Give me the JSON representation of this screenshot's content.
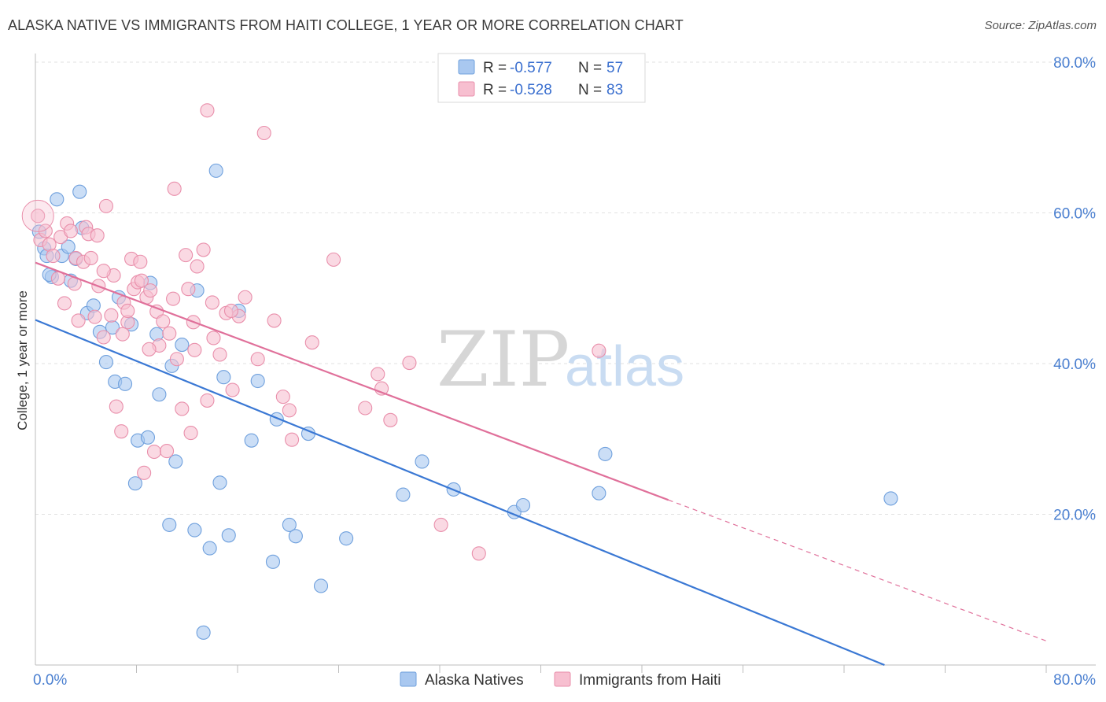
{
  "header": {
    "title": "ALASKA NATIVE VS IMMIGRANTS FROM HAITI COLLEGE, 1 YEAR OR MORE CORRELATION CHART",
    "source": "Source: ZipAtlas.com"
  },
  "watermark": {
    "zip": "ZIP",
    "atlas": "atlas"
  },
  "legend": {
    "r_label": "R = ",
    "n_label": "N = ",
    "items": [
      {
        "r": "-0.577",
        "n": "57",
        "color": "#a9c8f0",
        "stroke": "#6fa0dd"
      },
      {
        "r": "-0.528",
        "n": "83",
        "color": "#f7bfd0",
        "stroke": "#e98fab"
      }
    ]
  },
  "bottom_legend": [
    {
      "label": "Alaska Natives",
      "color": "#a9c8f0",
      "stroke": "#6fa0dd"
    },
    {
      "label": "Immigrants from Haiti",
      "color": "#f7bfd0",
      "stroke": "#e98fab"
    }
  ],
  "chart_data": {
    "type": "scatter",
    "xlabel": "",
    "ylabel": "College, 1 year or more",
    "xlim": [
      0,
      80
    ],
    "ylim": [
      0,
      80
    ],
    "x_tick_labels": [
      {
        "value": 0,
        "label": "0.0%"
      },
      {
        "value": 80,
        "label": "80.0%"
      }
    ],
    "y_ticks": [
      {
        "value": 20,
        "label": "20.0%"
      },
      {
        "value": 40,
        "label": "40.0%"
      },
      {
        "value": 60,
        "label": "60.0%"
      },
      {
        "value": 80,
        "label": "80.0%"
      }
    ],
    "grid": true,
    "legend_position": "top-center",
    "series": [
      {
        "name": "Alaska Natives",
        "color": "#a9c8f0",
        "stroke": "#6fa0dd",
        "line_color": "#3a78d4",
        "trend": {
          "x0": 0,
          "y0": 45.8,
          "x1": 67.2,
          "y1": 0
        },
        "points": [
          [
            0.3,
            57.5
          ],
          [
            0.7,
            55.3
          ],
          [
            0.9,
            54.3
          ],
          [
            1.3,
            51.5
          ],
          [
            1.7,
            61.8
          ],
          [
            2.1,
            54.3
          ],
          [
            2.6,
            55.5
          ],
          [
            2.8,
            51.0
          ],
          [
            3.2,
            53.9
          ],
          [
            3.5,
            62.8
          ],
          [
            3.7,
            58.0
          ],
          [
            4.1,
            46.7
          ],
          [
            4.6,
            47.7
          ],
          [
            5.1,
            44.2
          ],
          [
            5.6,
            40.2
          ],
          [
            6.1,
            44.8
          ],
          [
            6.3,
            37.6
          ],
          [
            6.6,
            48.8
          ],
          [
            7.1,
            37.3
          ],
          [
            7.6,
            45.2
          ],
          [
            7.9,
            24.1
          ],
          [
            8.1,
            29.8
          ],
          [
            8.9,
            30.2
          ],
          [
            9.1,
            50.7
          ],
          [
            9.6,
            43.9
          ],
          [
            9.8,
            35.9
          ],
          [
            10.6,
            18.6
          ],
          [
            10.8,
            39.7
          ],
          [
            11.1,
            27.0
          ],
          [
            12.8,
            49.7
          ],
          [
            12.6,
            17.9
          ],
          [
            13.3,
            4.3
          ],
          [
            13.8,
            15.5
          ],
          [
            14.3,
            65.6
          ],
          [
            14.6,
            24.2
          ],
          [
            14.9,
            38.2
          ],
          [
            15.3,
            17.2
          ],
          [
            16.1,
            47.0
          ],
          [
            17.1,
            29.8
          ],
          [
            17.6,
            37.7
          ],
          [
            18.8,
            13.7
          ],
          [
            19.1,
            32.6
          ],
          [
            20.1,
            18.6
          ],
          [
            20.6,
            17.1
          ],
          [
            21.6,
            30.7
          ],
          [
            22.6,
            10.5
          ],
          [
            24.6,
            16.8
          ],
          [
            29.1,
            22.6
          ],
          [
            30.6,
            27.0
          ],
          [
            33.1,
            23.3
          ],
          [
            37.9,
            20.3
          ],
          [
            38.6,
            21.2
          ],
          [
            44.6,
            22.8
          ],
          [
            45.1,
            28.0
          ],
          [
            67.7,
            22.1
          ],
          [
            1.1,
            51.8
          ],
          [
            11.6,
            42.5
          ]
        ]
      },
      {
        "name": "Immigrants from Haiti",
        "color": "#f7bfd0",
        "stroke": "#e98fab",
        "line_color": "#e0709a",
        "trend": {
          "x0": 0,
          "y0": 53.4,
          "x1": 50.1,
          "y1": 21.9
        },
        "trend_dashed": {
          "x0": 50.1,
          "y0": 21.9,
          "x1": 80,
          "y1": 3.2
        },
        "points": [
          [
            0.2,
            59.6
          ],
          [
            0.4,
            56.4
          ],
          [
            0.8,
            57.6
          ],
          [
            1.1,
            55.8
          ],
          [
            1.4,
            54.3
          ],
          [
            1.8,
            51.3
          ],
          [
            2.0,
            56.8
          ],
          [
            2.3,
            48.0
          ],
          [
            2.5,
            58.6
          ],
          [
            2.8,
            57.6
          ],
          [
            3.2,
            54.0
          ],
          [
            3.4,
            45.7
          ],
          [
            3.8,
            53.5
          ],
          [
            4.0,
            58.1
          ],
          [
            4.2,
            57.2
          ],
          [
            4.4,
            54.0
          ],
          [
            4.7,
            46.2
          ],
          [
            5.0,
            50.3
          ],
          [
            5.4,
            43.5
          ],
          [
            5.6,
            60.9
          ],
          [
            6.2,
            51.7
          ],
          [
            6.4,
            34.3
          ],
          [
            6.8,
            31.0
          ],
          [
            7.0,
            48.1
          ],
          [
            7.3,
            45.5
          ],
          [
            7.6,
            53.9
          ],
          [
            7.8,
            49.9
          ],
          [
            8.1,
            50.8
          ],
          [
            8.4,
            51.0
          ],
          [
            8.6,
            25.5
          ],
          [
            8.8,
            48.8
          ],
          [
            9.1,
            49.7
          ],
          [
            9.4,
            28.3
          ],
          [
            9.6,
            46.9
          ],
          [
            9.8,
            42.4
          ],
          [
            10.1,
            45.6
          ],
          [
            10.4,
            28.4
          ],
          [
            10.6,
            44.0
          ],
          [
            11.0,
            63.2
          ],
          [
            11.6,
            34.0
          ],
          [
            11.9,
            54.4
          ],
          [
            12.1,
            49.9
          ],
          [
            12.3,
            30.8
          ],
          [
            12.5,
            45.5
          ],
          [
            12.8,
            52.9
          ],
          [
            13.3,
            55.1
          ],
          [
            13.6,
            35.1
          ],
          [
            14.1,
            43.4
          ],
          [
            14.6,
            41.2
          ],
          [
            15.1,
            46.7
          ],
          [
            15.6,
            36.5
          ],
          [
            16.1,
            46.3
          ],
          [
            16.6,
            48.8
          ],
          [
            17.6,
            40.6
          ],
          [
            18.1,
            70.6
          ],
          [
            18.9,
            45.7
          ],
          [
            19.6,
            35.6
          ],
          [
            20.1,
            33.8
          ],
          [
            20.3,
            29.9
          ],
          [
            21.9,
            42.8
          ],
          [
            23.6,
            53.8
          ],
          [
            26.1,
            34.1
          ],
          [
            27.1,
            38.6
          ],
          [
            27.4,
            36.7
          ],
          [
            28.1,
            32.5
          ],
          [
            29.6,
            40.1
          ],
          [
            32.1,
            18.6
          ],
          [
            35.1,
            14.8
          ],
          [
            44.6,
            41.7
          ],
          [
            13.6,
            73.6
          ],
          [
            5.4,
            52.3
          ],
          [
            6.9,
            43.9
          ],
          [
            12.6,
            41.8
          ],
          [
            8.3,
            53.5
          ],
          [
            10.9,
            48.6
          ],
          [
            15.5,
            47.0
          ],
          [
            3.1,
            50.6
          ],
          [
            4.9,
            57.0
          ],
          [
            6.0,
            46.4
          ],
          [
            9.0,
            41.9
          ],
          [
            11.2,
            40.6
          ],
          [
            14.0,
            48.1
          ],
          [
            7.3,
            47.0
          ]
        ]
      }
    ]
  }
}
